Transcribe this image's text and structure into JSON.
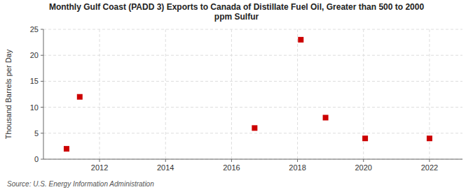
{
  "chart_data": {
    "type": "scatter",
    "title": "Monthly Gulf Coast (PADD 3) Exports to Canada of Distillate Fuel Oil, Greater than 500 to 2000\nppm Sulfur",
    "y_label": "Thousand Barrels per Day",
    "annotations": [
      "Source: U.S. Energy Information Administration"
    ],
    "x": [
      2011.0,
      2011.4,
      2016.7,
      2018.1,
      2018.85,
      2020.05,
      2022.0
    ],
    "values": [
      2,
      12,
      6,
      23,
      8,
      4,
      4
    ],
    "color": "#cc0000",
    "marker": "square",
    "xlim": [
      2010.3,
      2023.0
    ],
    "ylim": [
      0,
      25
    ],
    "xticks": [
      2012,
      2014,
      2016,
      2018,
      2020,
      2022
    ],
    "yticks": [
      0,
      5,
      10,
      15,
      20,
      25
    ],
    "grid": true
  }
}
